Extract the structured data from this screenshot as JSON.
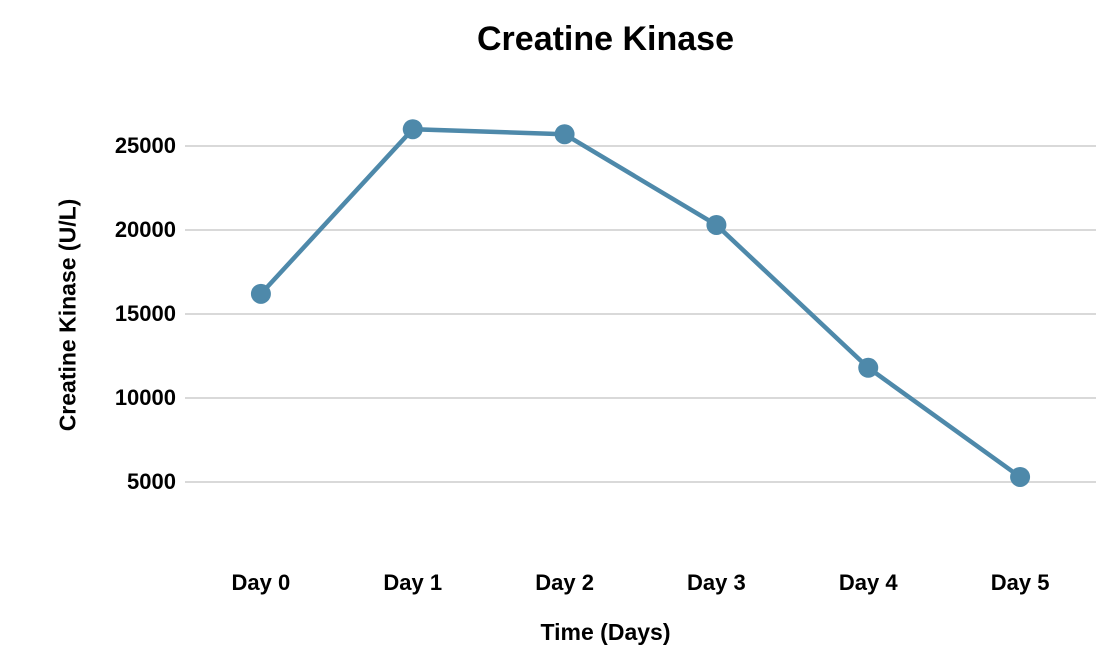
{
  "chart_data": {
    "type": "line",
    "title": "Creatine Kinase",
    "xlabel": "Time (Days)",
    "ylabel": "Creatine Kinase (U/L)",
    "categories": [
      "Day 0",
      "Day 1",
      "Day 2",
      "Day 3",
      "Day 4",
      "Day 5"
    ],
    "values": [
      16200,
      26000,
      25700,
      20300,
      11800,
      5300
    ],
    "y_ticks": [
      5000,
      10000,
      15000,
      20000,
      25000
    ],
    "ylim": [
      2500,
      27500
    ],
    "grid": "horizontal",
    "legend": "none",
    "marker": "circle",
    "colors": {
      "series": "#4e89aa",
      "gridline": "#d9d9d9",
      "text": "#000000",
      "background": "#ffffff"
    }
  }
}
